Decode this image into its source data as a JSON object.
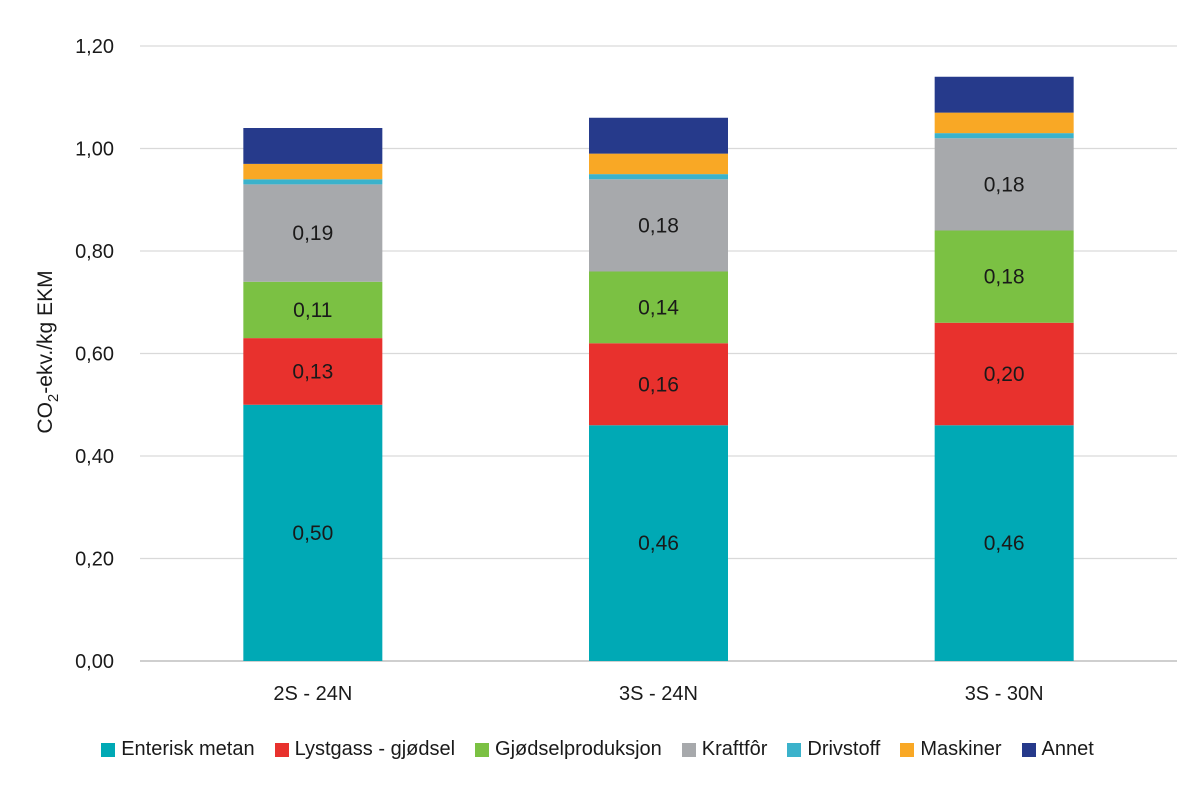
{
  "chart_data": {
    "type": "bar",
    "stacked": true,
    "categories": [
      "2S - 24N",
      "3S - 24N",
      "3S - 30N"
    ],
    "ylabel_main": "CO",
    "ylabel_sub": "2",
    "ylabel_rest": "-ekv./kg EKM",
    "ylim": [
      0,
      1.2
    ],
    "yticks": [
      "0,00",
      "0,20",
      "0,40",
      "0,60",
      "0,80",
      "1,00",
      "1,20"
    ],
    "grid": true,
    "legend_position": "bottom",
    "series": [
      {
        "name": "Enterisk metan",
        "color": "#00A9B5",
        "values": [
          0.5,
          0.46,
          0.46
        ],
        "labels": [
          "0,50",
          "0,46",
          "0,46"
        ]
      },
      {
        "name": "Lystgass - gjødsel",
        "color": "#E8312D",
        "values": [
          0.13,
          0.16,
          0.2
        ],
        "labels": [
          "0,13",
          "0,16",
          "0,20"
        ]
      },
      {
        "name": "Gjødselproduksjon",
        "color": "#7BC143",
        "values": [
          0.11,
          0.14,
          0.18
        ],
        "labels": [
          "0,11",
          "0,14",
          "0,18"
        ]
      },
      {
        "name": "Kraftfôr",
        "color": "#A7A9AC",
        "values": [
          0.19,
          0.18,
          0.18
        ],
        "labels": [
          "0,19",
          "0,18",
          "0,18"
        ]
      },
      {
        "name": "Drivstoff",
        "color": "#3BB2CB",
        "values": [
          0.01,
          0.01,
          0.01
        ],
        "labels": [
          "",
          "",
          ""
        ]
      },
      {
        "name": "Maskiner",
        "color": "#F9A825",
        "values": [
          0.03,
          0.04,
          0.04
        ],
        "labels": [
          "",
          "",
          ""
        ]
      },
      {
        "name": "Annet",
        "color": "#263A8B",
        "values": [
          0.07,
          0.07,
          0.07
        ],
        "labels": [
          "",
          "",
          ""
        ]
      }
    ]
  }
}
